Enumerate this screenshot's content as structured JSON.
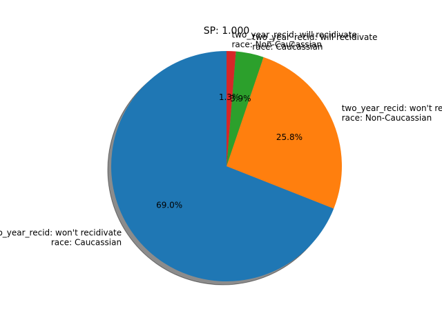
{
  "chart_data": {
    "type": "pie",
    "title": "SP: 1.000",
    "shadow": true,
    "start_angle_deg": 90,
    "direction": "counterclockwise",
    "slices": [
      {
        "label_line1": "two_year_recid: won't recidivate",
        "label_line2": "race: Caucassian",
        "value": 69.0,
        "pct_label": "69.0%",
        "color": "#1f77b4"
      },
      {
        "label_line1": "two_year_recid: won't recidivate",
        "label_line2": "race: Non-Caucassian",
        "value": 25.8,
        "pct_label": "25.8%",
        "color": "#ff7f0e"
      },
      {
        "label_line1": "two_year_recid: will recidivate",
        "label_line2": "race: Caucassian",
        "value": 3.9,
        "pct_label": "3.9%",
        "color": "#2ca02c"
      },
      {
        "label_line1": "two_year_recid: will recidivate",
        "label_line2": "race: Non-Caucassian",
        "value": 1.3,
        "pct_label": "1.3%",
        "color": "#d62728"
      }
    ]
  }
}
